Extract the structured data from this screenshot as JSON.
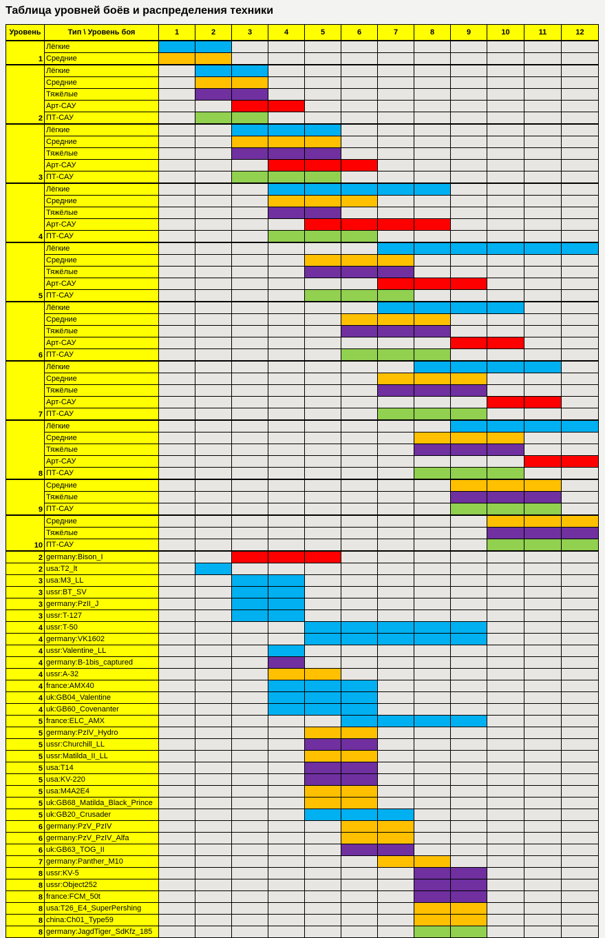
{
  "title": "Таблица уровней боёв и распределения техники",
  "header": {
    "level": "Уровень",
    "type": "Тип \\ Уровень боя",
    "tiers": [
      "1",
      "2",
      "3",
      "4",
      "5",
      "6",
      "7",
      "8",
      "9",
      "10",
      "11",
      "12"
    ]
  },
  "colors": {
    "Лёгкие": "#00b0f0",
    "Средние": "#ffc000",
    "Тяжёлые": "#7030a0",
    "Арт-САУ": "#ff0000",
    "ПТ-САУ": "#92d050",
    "empty": "#e8e6e2",
    "label": "#ffff00"
  },
  "groups": [
    {
      "level": "1",
      "rows": [
        {
          "type": "Лёгкие",
          "c": "L",
          "r": [
            1,
            2
          ]
        },
        {
          "type": "Средние",
          "c": "M",
          "r": [
            1,
            2
          ]
        }
      ]
    },
    {
      "level": "2",
      "rows": [
        {
          "type": "Лёгкие",
          "c": "L",
          "r": [
            2,
            3
          ]
        },
        {
          "type": "Средние",
          "c": "M",
          "r": [
            2,
            3
          ]
        },
        {
          "type": "Тяжёлые",
          "c": "H",
          "r": [
            2,
            3
          ]
        },
        {
          "type": "Арт-САУ",
          "c": "A",
          "r": [
            3,
            4
          ]
        },
        {
          "type": "ПТ-САУ",
          "c": "T",
          "r": [
            2,
            3
          ]
        }
      ]
    },
    {
      "level": "3",
      "rows": [
        {
          "type": "Лёгкие",
          "c": "L",
          "r": [
            3,
            5
          ]
        },
        {
          "type": "Средние",
          "c": "M",
          "r": [
            3,
            5
          ]
        },
        {
          "type": "Тяжёлые",
          "c": "H",
          "r": [
            3,
            5
          ]
        },
        {
          "type": "Арт-САУ",
          "c": "A",
          "r": [
            4,
            6
          ]
        },
        {
          "type": "ПТ-САУ",
          "c": "T",
          "r": [
            3,
            5
          ]
        }
      ]
    },
    {
      "level": "4",
      "rows": [
        {
          "type": "Лёгкие",
          "c": "L",
          "r": [
            4,
            8
          ]
        },
        {
          "type": "Средние",
          "c": "M",
          "r": [
            4,
            6
          ]
        },
        {
          "type": "Тяжёлые",
          "c": "H",
          "r": [
            4,
            5
          ]
        },
        {
          "type": "Арт-САУ",
          "c": "A",
          "r": [
            5,
            8
          ]
        },
        {
          "type": "ПТ-САУ",
          "c": "T",
          "r": [
            4,
            6
          ]
        }
      ]
    },
    {
      "level": "5",
      "rows": [
        {
          "type": "Лёгкие",
          "c": "L",
          "r": [
            7,
            12
          ]
        },
        {
          "type": "Средние",
          "c": "M",
          "r": [
            5,
            7
          ]
        },
        {
          "type": "Тяжёлые",
          "c": "H",
          "r": [
            5,
            7
          ]
        },
        {
          "type": "Арт-САУ",
          "c": "A",
          "r": [
            7,
            9
          ]
        },
        {
          "type": "ПТ-САУ",
          "c": "T",
          "r": [
            5,
            7
          ]
        }
      ]
    },
    {
      "level": "6",
      "rows": [
        {
          "type": "Лёгкие",
          "c": "L",
          "r": [
            7,
            10
          ]
        },
        {
          "type": "Средние",
          "c": "M",
          "r": [
            6,
            8
          ]
        },
        {
          "type": "Тяжёлые",
          "c": "H",
          "r": [
            6,
            8
          ]
        },
        {
          "type": "Арт-САУ",
          "c": "A",
          "r": [
            9,
            10
          ]
        },
        {
          "type": "ПТ-САУ",
          "c": "T",
          "r": [
            6,
            8
          ]
        }
      ]
    },
    {
      "level": "7",
      "rows": [
        {
          "type": "Лёгкие",
          "c": "L",
          "r": [
            8,
            11
          ]
        },
        {
          "type": "Средние",
          "c": "M",
          "r": [
            7,
            9
          ]
        },
        {
          "type": "Тяжёлые",
          "c": "H",
          "r": [
            7,
            9
          ]
        },
        {
          "type": "Арт-САУ",
          "c": "A",
          "r": [
            10,
            11
          ]
        },
        {
          "type": "ПТ-САУ",
          "c": "T",
          "r": [
            7,
            9
          ]
        }
      ]
    },
    {
      "level": "8",
      "rows": [
        {
          "type": "Лёгкие",
          "c": "L",
          "r": [
            9,
            12
          ]
        },
        {
          "type": "Средние",
          "c": "M",
          "r": [
            8,
            10
          ]
        },
        {
          "type": "Тяжёлые",
          "c": "H",
          "r": [
            8,
            10
          ]
        },
        {
          "type": "Арт-САУ",
          "c": "A",
          "r": [
            11,
            12
          ]
        },
        {
          "type": "ПТ-САУ",
          "c": "T",
          "r": [
            8,
            10
          ]
        }
      ]
    },
    {
      "level": "9",
      "rows": [
        {
          "type": "Средние",
          "c": "M",
          "r": [
            9,
            11
          ]
        },
        {
          "type": "Тяжёлые",
          "c": "H",
          "r": [
            9,
            11
          ]
        },
        {
          "type": "ПТ-САУ",
          "c": "T",
          "r": [
            9,
            11
          ]
        }
      ]
    },
    {
      "level": "10",
      "rows": [
        {
          "type": "Средние",
          "c": "M",
          "r": [
            10,
            12
          ]
        },
        {
          "type": "Тяжёлые",
          "c": "H",
          "r": [
            10,
            12
          ]
        },
        {
          "type": "ПТ-САУ",
          "c": "T",
          "r": [
            10,
            12
          ]
        }
      ]
    }
  ],
  "vehicles": [
    {
      "level": "2",
      "name": "germany:Bison_I",
      "c": "A",
      "r": [
        3,
        5
      ]
    },
    {
      "level": "2",
      "name": "usa:T2_lt",
      "c": "L",
      "r": [
        2,
        2
      ]
    },
    {
      "level": "3",
      "name": "usa:M3_LL",
      "c": "L",
      "r": [
        3,
        4
      ]
    },
    {
      "level": "3",
      "name": "ussr:BT_SV",
      "c": "L",
      "r": [
        3,
        4
      ]
    },
    {
      "level": "3",
      "name": "germany:PzII_J",
      "c": "L",
      "r": [
        3,
        4
      ]
    },
    {
      "level": "3",
      "name": "ussr:T-127",
      "c": "L",
      "r": [
        3,
        4
      ]
    },
    {
      "level": "4",
      "name": "ussr:T-50",
      "c": "L",
      "r": [
        5,
        9
      ]
    },
    {
      "level": "4",
      "name": "germany:VK1602",
      "c": "L",
      "r": [
        5,
        9
      ]
    },
    {
      "level": "4",
      "name": "ussr:Valentine_LL",
      "c": "L",
      "r": [
        4,
        4
      ]
    },
    {
      "level": "4",
      "name": "germany:B-1bis_captured",
      "c": "H",
      "r": [
        4,
        4
      ]
    },
    {
      "level": "4",
      "name": "ussr:A-32",
      "c": "M",
      "r": [
        4,
        5
      ]
    },
    {
      "level": "4",
      "name": "france:AMX40",
      "c": "L",
      "r": [
        4,
        6
      ]
    },
    {
      "level": "4",
      "name": "uk:GB04_Valentine",
      "c": "L",
      "r": [
        4,
        6
      ]
    },
    {
      "level": "4",
      "name": "uk:GB60_Covenanter",
      "c": "L",
      "r": [
        4,
        6
      ]
    },
    {
      "level": "5",
      "name": "france:ELC_AMX",
      "c": "L",
      "r": [
        6,
        9
      ]
    },
    {
      "level": "5",
      "name": "germany:PzIV_Hydro",
      "c": "M",
      "r": [
        5,
        6
      ]
    },
    {
      "level": "5",
      "name": "ussr:Churchill_LL",
      "c": "H",
      "r": [
        5,
        6
      ]
    },
    {
      "level": "5",
      "name": "ussr:Matilda_II_LL",
      "c": "M",
      "r": [
        5,
        6
      ]
    },
    {
      "level": "5",
      "name": "usa:T14",
      "c": "H",
      "r": [
        5,
        6
      ]
    },
    {
      "level": "5",
      "name": "usa:KV-220",
      "c": "H",
      "r": [
        5,
        6
      ]
    },
    {
      "level": "5",
      "name": "usa:M4A2E4",
      "c": "M",
      "r": [
        5,
        6
      ]
    },
    {
      "level": "5",
      "name": "uk:GB68_Matilda_Black_Prince",
      "c": "M",
      "r": [
        5,
        6
      ]
    },
    {
      "level": "5",
      "name": "uk:GB20_Crusader",
      "c": "L",
      "r": [
        5,
        7
      ]
    },
    {
      "level": "6",
      "name": "germany:PzV_PzIV",
      "c": "M",
      "r": [
        6,
        7
      ]
    },
    {
      "level": "6",
      "name": "germany:PzV_PzIV_Alfa",
      "c": "M",
      "r": [
        6,
        7
      ]
    },
    {
      "level": "6",
      "name": "uk:GB63_TOG_II",
      "c": "H",
      "r": [
        6,
        7
      ]
    },
    {
      "level": "7",
      "name": "germany:Panther_M10",
      "c": "M",
      "r": [
        7,
        8
      ]
    },
    {
      "level": "8",
      "name": "ussr:KV-5",
      "c": "H",
      "r": [
        8,
        9
      ]
    },
    {
      "level": "8",
      "name": "ussr:Object252",
      "c": "H",
      "r": [
        8,
        9
      ]
    },
    {
      "level": "8",
      "name": "france:FCM_50t",
      "c": "H",
      "r": [
        8,
        9
      ]
    },
    {
      "level": "8",
      "name": "usa:T26_E4_SuperPershing",
      "c": "M",
      "r": [
        8,
        9
      ]
    },
    {
      "level": "8",
      "name": "china:Ch01_Type59",
      "c": "M",
      "r": [
        8,
        9
      ]
    },
    {
      "level": "8",
      "name": "germany:JagdTiger_SdKfz_185",
      "c": "T",
      "r": [
        8,
        9
      ]
    }
  ]
}
